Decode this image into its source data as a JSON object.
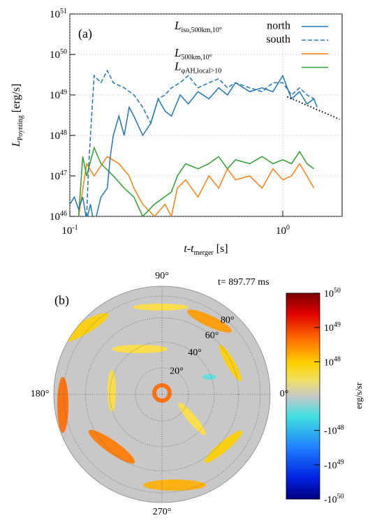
{
  "chart_data": [
    {
      "type": "line",
      "label": "(a)",
      "log_x": true,
      "log_y": true,
      "grid": true,
      "xlabel": {
        "text": "t-t",
        "subscript": "merger",
        "unit": "[s]"
      },
      "ylabel": {
        "symbol": "L",
        "subscript": "Poynting",
        "unit": "[erg/s]"
      },
      "xlim": [
        0.1,
        1.9
      ],
      "xticks": [
        {
          "value": 0.1,
          "label": "10",
          "exponent": "-1"
        },
        {
          "value": 1,
          "label": "10",
          "exponent": "0"
        }
      ],
      "ylim": [
        1e+46,
        1e+51
      ],
      "yticks": [
        {
          "value": 1e+46,
          "label": "10",
          "exponent": "46"
        },
        {
          "value": 1e+47,
          "label": "10",
          "exponent": "47"
        },
        {
          "value": 1e+48,
          "label": "10",
          "exponent": "48"
        },
        {
          "value": 1e+49,
          "label": "10",
          "exponent": "49"
        },
        {
          "value": 1e+50,
          "label": "10",
          "exponent": "50"
        },
        {
          "value": 1e+51,
          "label": "10",
          "exponent": "51"
        }
      ],
      "series": [
        {
          "name": "north",
          "label": {
            "symbol": "L",
            "subscript": "iso,500km,10°"
          },
          "color": "#1f77b4",
          "dashed": false,
          "x": [
            0.1,
            0.105,
            0.11,
            0.115,
            0.12,
            0.125,
            0.13,
            0.14,
            0.15,
            0.155,
            0.16,
            0.17,
            0.18,
            0.19,
            0.2,
            0.22,
            0.24,
            0.26,
            0.28,
            0.3,
            0.33,
            0.36,
            0.4,
            0.45,
            0.5,
            0.55,
            0.6,
            0.7,
            0.8,
            0.9,
            1.0,
            1.05,
            1.1,
            1.2,
            1.3,
            1.4,
            1.45
          ],
          "values": [
            2e+46,
            3e+46,
            1.5e+46,
            3e+46,
            8e+45,
            2e+46,
            6e+45,
            3e+46,
            5e+46,
            3e+47,
            1e+48,
            3e+48,
            1e+48,
            5e+48,
            3e+48,
            1e+48,
            2e+48,
            8e+48,
            4e+48,
            3e+48,
            1e+49,
            6e+48,
            1.2e+49,
            8e+48,
            1.5e+49,
            1e+49,
            2e+49,
            1.2e+49,
            1.5e+49,
            1.2e+49,
            3e+49,
            1.5e+49,
            8e+48,
            1.2e+49,
            6e+48,
            8e+48,
            5e+48
          ]
        },
        {
          "name": "south",
          "color": "#1f77b4",
          "dashed": true,
          "x": [
            0.12,
            0.122,
            0.125,
            0.13,
            0.14,
            0.15,
            0.16,
            0.18,
            0.2,
            0.22,
            0.24,
            0.26,
            0.28,
            0.3,
            0.33,
            0.36,
            0.4,
            0.45,
            0.5,
            0.55,
            0.6,
            0.7,
            0.8,
            0.9,
            1.0,
            1.1,
            1.2,
            1.3,
            1.4
          ],
          "values": [
            1e+46,
            1e+47,
            1e+48,
            3e+49,
            2e+49,
            4e+49,
            2e+49,
            1.5e+49,
            1e+49,
            5e+48,
            2e+48,
            8e+48,
            1e+49,
            1.5e+49,
            2e+49,
            3e+49,
            1.5e+49,
            2e+49,
            2.5e+49,
            1.5e+49,
            2e+49,
            1.5e+49,
            1.2e+49,
            2e+49,
            2e+49,
            1e+49,
            1.5e+49,
            1e+49,
            8e+48
          ]
        },
        {
          "label": {
            "symbol": "L",
            "subscript": "500km,10°"
          },
          "color": "#ff7f0e",
          "dashed": false,
          "x": [
            0.11,
            0.12,
            0.13,
            0.15,
            0.17,
            0.19,
            0.2,
            0.22,
            0.25,
            0.28,
            0.3,
            0.32,
            0.35,
            0.4,
            0.45,
            0.5,
            0.55,
            0.6,
            0.7,
            0.8,
            0.9,
            1.0,
            1.1,
            1.2,
            1.3,
            1.4
          ],
          "values": [
            1e+46,
            2e+47,
            1e+47,
            3e+47,
            2e+47,
            1e+47,
            5e+46,
            2e+46,
            1e+46,
            2e+46,
            1e+46,
            5e+46,
            8e+46,
            3e+46,
            1e+47,
            5e+46,
            1.5e+47,
            8e+46,
            1e+47,
            5e+46,
            1.5e+47,
            8e+46,
            1e+47,
            2e+47,
            1e+47,
            5e+46
          ]
        },
        {
          "label": {
            "symbol": "L",
            "subscript": "φAH,local>10"
          },
          "color": "#2ca02c",
          "dashed": false,
          "x": [
            0.11,
            0.115,
            0.12,
            0.13,
            0.14,
            0.16,
            0.18,
            0.2,
            0.22,
            0.25,
            0.3,
            0.32,
            0.35,
            0.4,
            0.45,
            0.5,
            0.55,
            0.6,
            0.7,
            0.8,
            0.9,
            1.0,
            1.1,
            1.2,
            1.3,
            1.4
          ],
          "values": [
            1e+46,
            3e+47,
            1e+47,
            5e+47,
            2e+47,
            1e+47,
            5e+46,
            3e+46,
            1e+46,
            2e+46,
            4e+46,
            1e+47,
            2e+47,
            1.5e+47,
            2e+47,
            3e+47,
            1.5e+47,
            2.5e+47,
            2e+47,
            3e+47,
            2e+47,
            2.5e+47,
            2e+47,
            4e+47,
            2e+47,
            1.5e+47
          ]
        }
      ],
      "fit_line": {
        "x": [
          1.05,
          1.85
        ],
        "values": [
          9e+48,
          2.5e+48
        ]
      }
    },
    {
      "type": "polar_heatmap",
      "label": "(b)",
      "time_label": "t= 897.77 ms",
      "rlim": [
        0,
        90
      ],
      "rings": [
        {
          "value": 20,
          "label": "20°"
        },
        {
          "value": 40,
          "label": "40°"
        },
        {
          "value": 60,
          "label": "60°"
        },
        {
          "value": 80,
          "label": "80°"
        }
      ],
      "angles": [
        {
          "value": 0,
          "label": "0°"
        },
        {
          "value": 90,
          "label": "90°"
        },
        {
          "value": 180,
          "label": "180°"
        },
        {
          "value": 270,
          "label": "270°"
        }
      ],
      "colorbar": {
        "unit": "erg/s/sr",
        "clim": [
          -1e+50,
          1e+50
        ],
        "linthresh": 1e+47,
        "ticks": [
          {
            "value": 1e+50,
            "label": "10",
            "exponent": "50"
          },
          {
            "value": 1e+49,
            "label": "10",
            "exponent": "49"
          },
          {
            "value": 1e+48,
            "label": "10",
            "exponent": "48"
          },
          {
            "value": -1e+48,
            "label": "-10",
            "exponent": "48"
          },
          {
            "value": -1e+49,
            "label": "-10",
            "exponent": "49"
          },
          {
            "value": -1e+50,
            "label": "-10",
            "exponent": "50"
          }
        ]
      }
    }
  ]
}
